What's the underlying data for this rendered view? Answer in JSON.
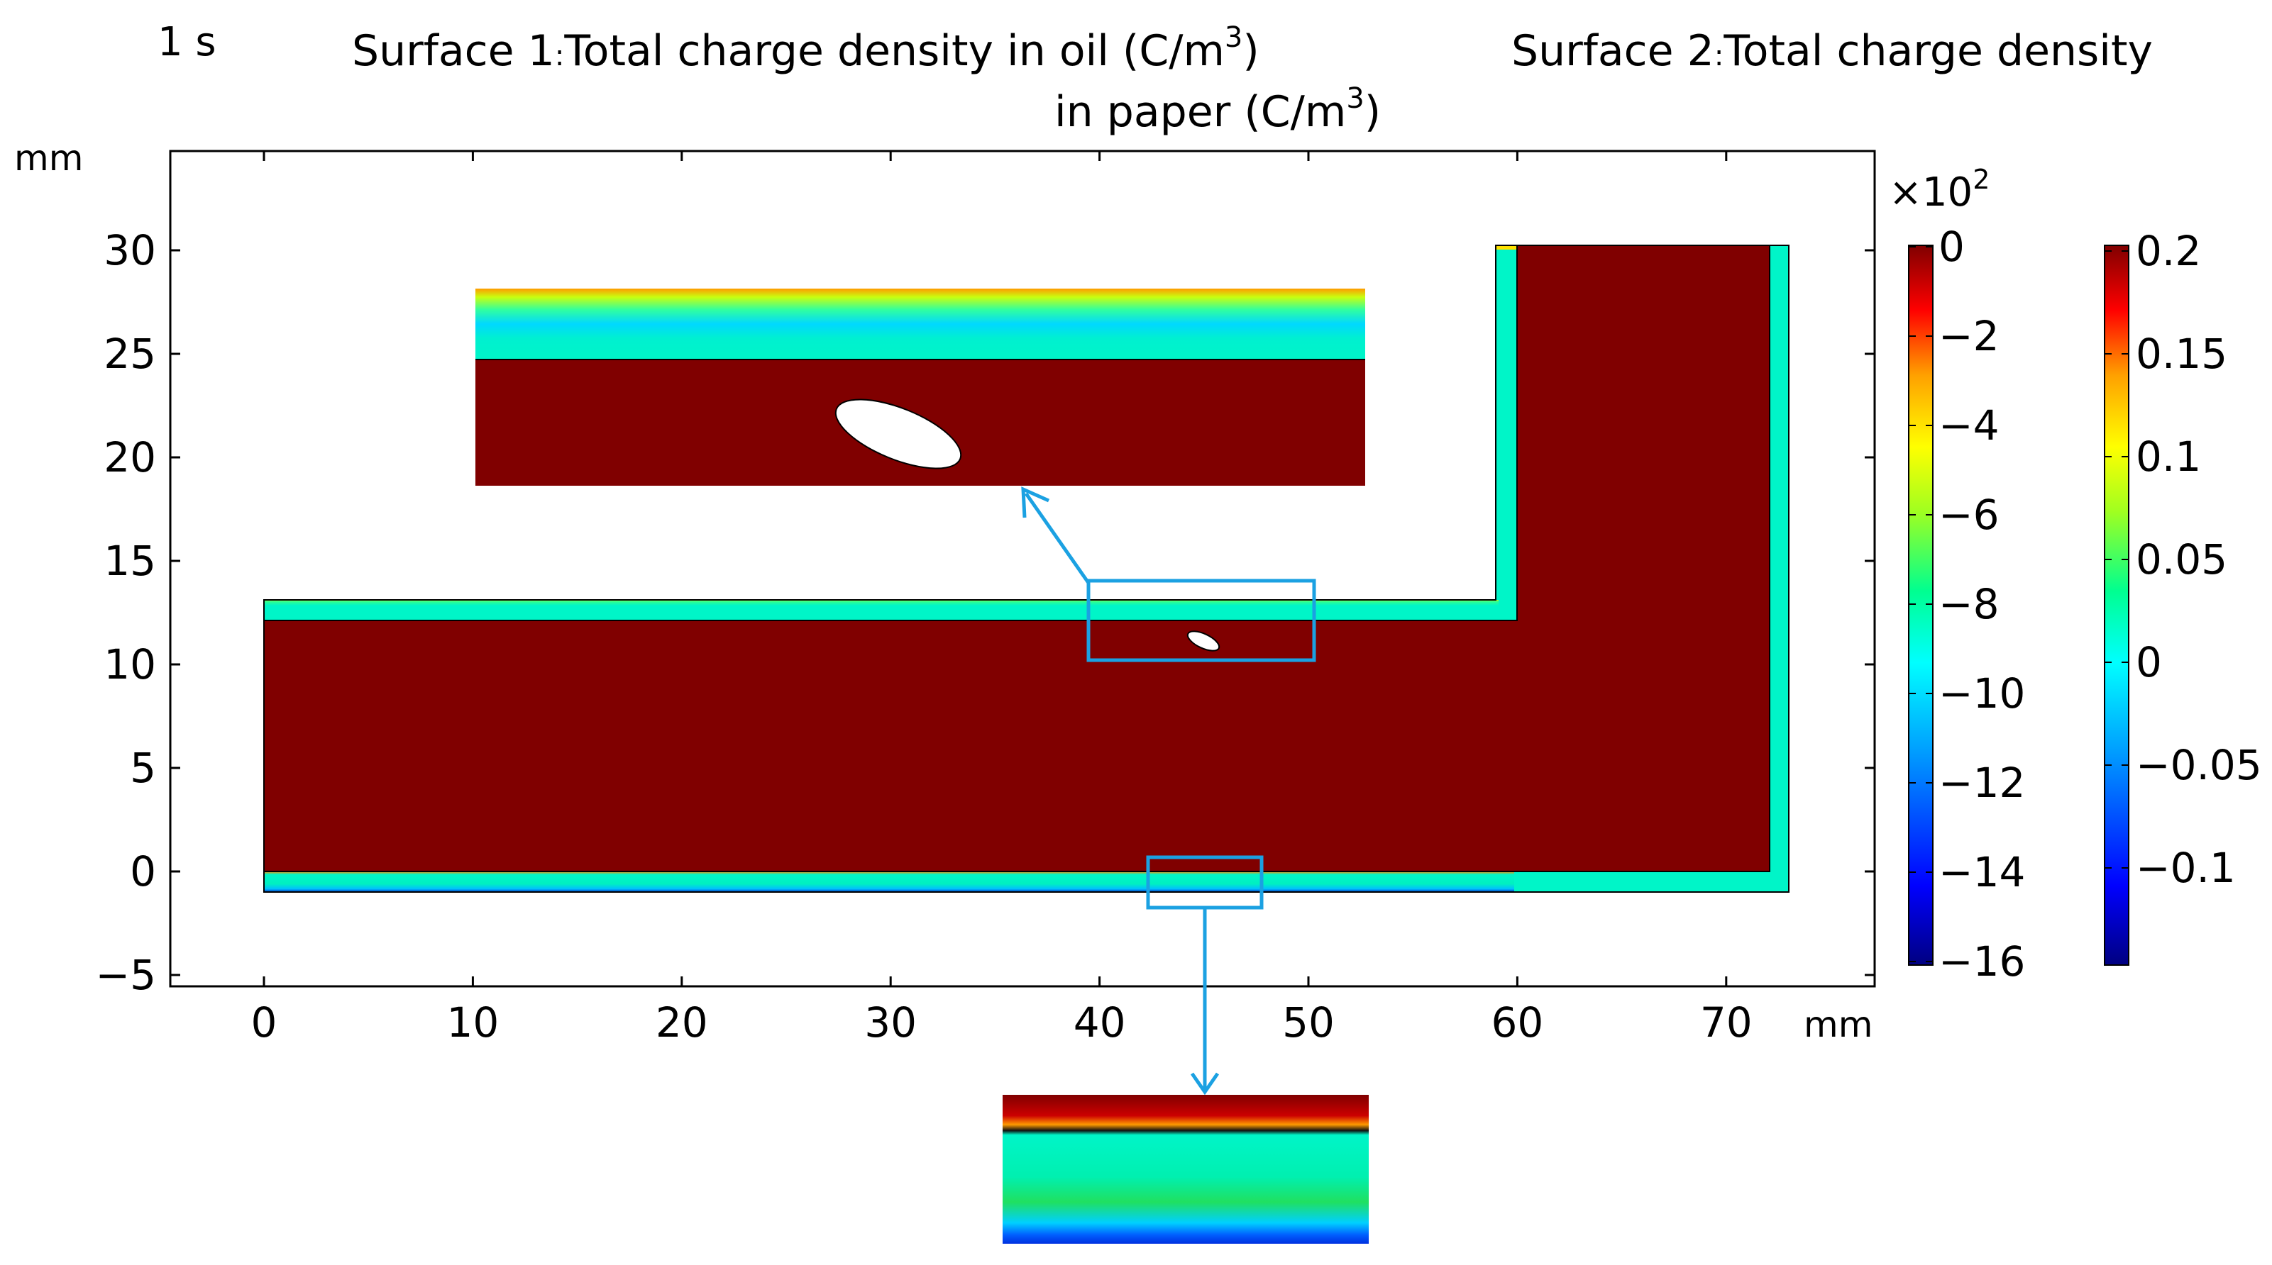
{
  "chart_data": {
    "type": "heatmap",
    "time_label": "1 s",
    "title_line1_prefix": "Surface 1",
    "title_line1_text": "Total charge density in oil (C/m",
    "title_line2_text": "in paper (C/m",
    "title_superscript": "3",
    "title_close": ")",
    "title_right_prefix": "Surface 2",
    "title_right_text": "Total charge density",
    "title_separator": ":",
    "ylabel": "mm",
    "xlabel": "mm",
    "xlim": [
      -4.5,
      77
    ],
    "ylim": [
      -5.5,
      34
    ],
    "x_ticks": [
      0,
      10,
      20,
      30,
      40,
      50,
      60,
      70
    ],
    "y_ticks": [
      30,
      25,
      20,
      15,
      10,
      5,
      0,
      -5
    ],
    "geometry": {
      "lower_block": {
        "x": [
          0,
          60
        ],
        "y": [
          -1,
          13
        ]
      },
      "vertical_arm": {
        "x": [
          59,
          73
        ],
        "y": [
          -1,
          30
        ]
      },
      "oil_region_horizontal": {
        "x": [
          0,
          60
        ],
        "y": [
          0,
          12
        ]
      },
      "oil_region_vertical": {
        "x": [
          60,
          72
        ],
        "y": [
          0,
          30
        ]
      },
      "void_ellipse": {
        "cx": 45,
        "cy": 10.9,
        "rx": 0.8,
        "ry": 0.35,
        "angle": 25
      }
    },
    "colorbar_oil": {
      "multiplier": "×10",
      "multiplier_exp": "2",
      "ticks": [
        "0",
        "−2",
        "−4",
        "−6",
        "−8",
        "−10",
        "−12",
        "−14",
        "−16"
      ],
      "range": [
        -16,
        0
      ]
    },
    "colorbar_paper": {
      "ticks": [
        "0.2",
        "0.15",
        "0.1",
        "0.05",
        "0",
        "−0.05",
        "−0.1"
      ],
      "range": [
        -0.15,
        0.2
      ]
    },
    "colors": {
      "dark_red": "#800000",
      "paper_cyan": "#00f5c8",
      "highlight_box": "#1ba1e2",
      "colormap": [
        "#000080",
        "#0000ff",
        "#00aaff",
        "#00ffff",
        "#00ff80",
        "#aaff00",
        "#ffff00",
        "#ffaa00",
        "#ff0000",
        "#800000"
      ]
    },
    "zoom_boxes": [
      {
        "name": "upper",
        "x": [
          39.5,
          50.5
        ],
        "y": [
          10.2,
          14
        ]
      },
      {
        "name": "lower",
        "x": [
          42.5,
          48
        ],
        "y": [
          -1.7,
          0.7
        ]
      }
    ]
  }
}
